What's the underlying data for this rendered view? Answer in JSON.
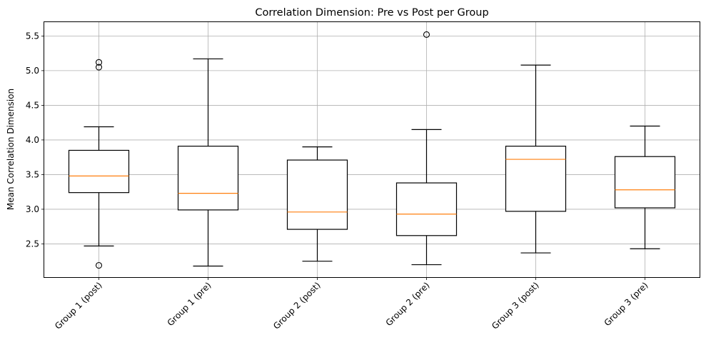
{
  "chart_data": {
    "type": "box",
    "title": "Correlation Dimension: Pre vs Post per Group",
    "xlabel": "",
    "ylabel": "Mean Correlation Dimension",
    "categories": [
      "Group 1 (post)",
      "Group 1 (pre)",
      "Group 2 (post)",
      "Group 2 (pre)",
      "Group 3 (post)",
      "Group 3 (pre)"
    ],
    "boxes": [
      {
        "whisker_low": 2.47,
        "q1": 3.24,
        "median": 3.48,
        "q3": 3.85,
        "whisker_high": 4.19,
        "outliers": [
          2.19,
          5.05,
          5.12
        ]
      },
      {
        "whisker_low": 2.18,
        "q1": 2.99,
        "median": 3.23,
        "q3": 3.91,
        "whisker_high": 5.17,
        "outliers": []
      },
      {
        "whisker_low": 2.25,
        "q1": 2.71,
        "median": 2.96,
        "q3": 3.71,
        "whisker_high": 3.9,
        "outliers": []
      },
      {
        "whisker_low": 2.2,
        "q1": 2.62,
        "median": 2.93,
        "q3": 3.38,
        "whisker_high": 4.15,
        "outliers": [
          5.52
        ]
      },
      {
        "whisker_low": 2.37,
        "q1": 2.97,
        "median": 3.72,
        "q3": 3.91,
        "whisker_high": 5.08,
        "outliers": []
      },
      {
        "whisker_low": 2.43,
        "q1": 3.02,
        "median": 3.28,
        "q3": 3.76,
        "whisker_high": 4.2,
        "outliers": []
      }
    ],
    "yticks": [
      "2.5",
      "3.0",
      "3.5",
      "4.0",
      "4.5",
      "5.0",
      "5.5"
    ],
    "ylim": [
      2.02,
      5.7
    ],
    "grid": true,
    "legend": "none",
    "colors": {
      "box": "#000000",
      "median": "#ff7f0e",
      "grid": "#b0b0b0"
    }
  }
}
